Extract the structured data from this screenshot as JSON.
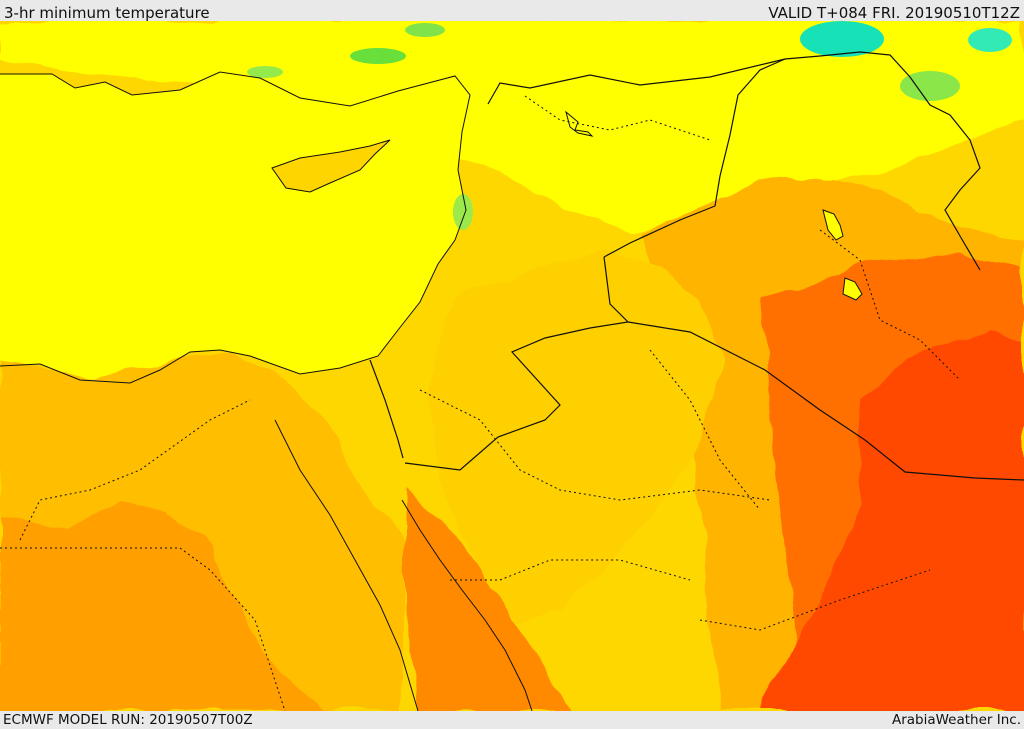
{
  "header": {
    "title": "3-hr minimum temperature",
    "valid_time": "VALID T+084 FRI. 20190510T12Z"
  },
  "footer": {
    "model_run": "ECMWF MODEL RUN: 20190507T00Z",
    "credit": "ArabiaWeather Inc."
  },
  "colors": {
    "sea": "#ffff00",
    "warm_yellow": "#ffd700",
    "orange_light": "#ffbf00",
    "orange": "#ff9a00",
    "orange_dark": "#ff7000",
    "red_orange": "#ff4a00",
    "green": "#7de34b",
    "cyan": "#24e7b7"
  }
}
